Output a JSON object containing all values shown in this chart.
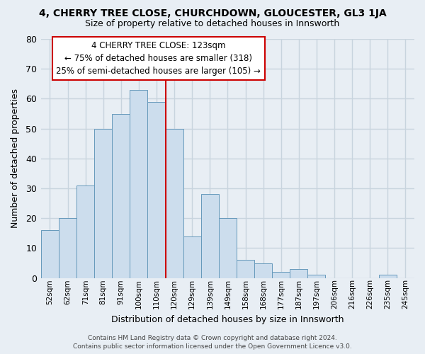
{
  "title": "4, CHERRY TREE CLOSE, CHURCHDOWN, GLOUCESTER, GL3 1JA",
  "subtitle": "Size of property relative to detached houses in Innsworth",
  "xlabel": "Distribution of detached houses by size in Innsworth",
  "ylabel": "Number of detached properties",
  "categories": [
    "52sqm",
    "62sqm",
    "71sqm",
    "81sqm",
    "91sqm",
    "100sqm",
    "110sqm",
    "120sqm",
    "129sqm",
    "139sqm",
    "149sqm",
    "158sqm",
    "168sqm",
    "177sqm",
    "187sqm",
    "197sqm",
    "206sqm",
    "216sqm",
    "226sqm",
    "235sqm",
    "245sqm"
  ],
  "values": [
    16,
    20,
    31,
    50,
    55,
    63,
    59,
    50,
    14,
    28,
    20,
    6,
    5,
    2,
    3,
    1,
    0,
    0,
    0,
    1,
    0
  ],
  "bar_color": "#ccdded",
  "bar_edge_color": "#6699bb",
  "highlight_index": 7,
  "vline_color": "#cc0000",
  "ylim": [
    0,
    80
  ],
  "yticks": [
    0,
    10,
    20,
    30,
    40,
    50,
    60,
    70,
    80
  ],
  "annotation_title": "4 CHERRY TREE CLOSE: 123sqm",
  "annotation_line1": "← 75% of detached houses are smaller (318)",
  "annotation_line2": "25% of semi-detached houses are larger (105) →",
  "annotation_box_facecolor": "#ffffff",
  "annotation_box_edgecolor": "#cc0000",
  "footer_line1": "Contains HM Land Registry data © Crown copyright and database right 2024.",
  "footer_line2": "Contains public sector information licensed under the Open Government Licence v3.0.",
  "background_color": "#e8eef4",
  "grid_color": "#c8d4de"
}
